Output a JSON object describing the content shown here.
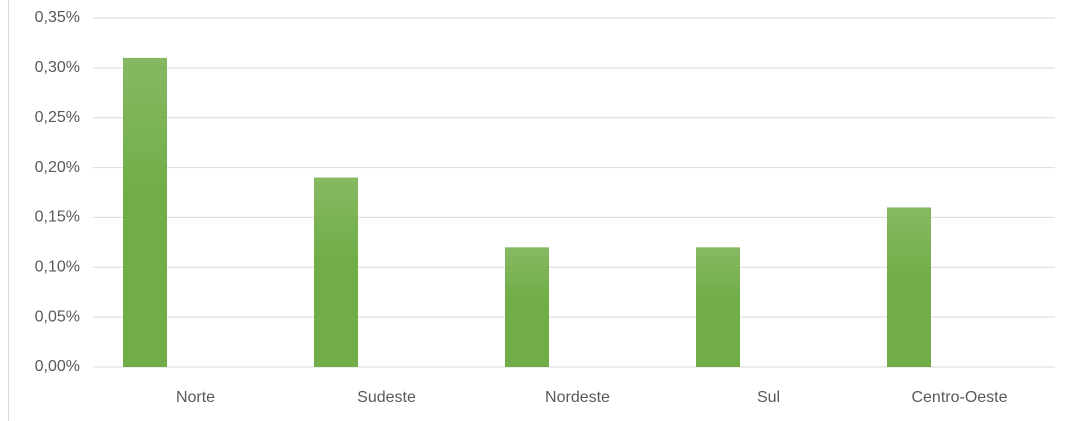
{
  "chart_data": {
    "type": "bar",
    "categories": [
      "Norte",
      "Sudeste",
      "Nordeste",
      "Sul",
      "Centro-Oeste"
    ],
    "values": [
      0.31,
      0.19,
      0.12,
      0.12,
      0.16
    ],
    "color": "#70ad47",
    "ylim": [
      0,
      0.35
    ],
    "yticks": [
      {
        "value": 0,
        "label": "0,00%"
      },
      {
        "value": 0.05,
        "label": "0,05%"
      },
      {
        "value": 0.1,
        "label": "0,10%"
      },
      {
        "value": 0.15,
        "label": "0,15%"
      },
      {
        "value": 0.2,
        "label": "0,20%"
      },
      {
        "value": 0.25,
        "label": "0,25%"
      },
      {
        "value": 0.3,
        "label": "0,30%"
      },
      {
        "value": 0.35,
        "label": "0,35%"
      }
    ],
    "grid": true
  }
}
